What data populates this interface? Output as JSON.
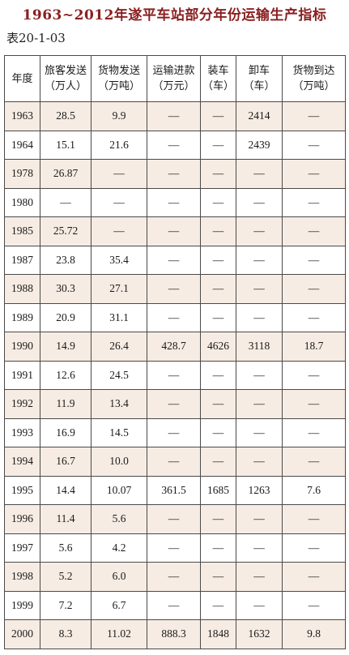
{
  "title": "1963~2012年遂平车站部分年份运输生产指标",
  "table_id": "表20-1-03",
  "headers": [
    {
      "line1": "年度",
      "line2": ""
    },
    {
      "line1": "旅客发送",
      "line2": "（万人）"
    },
    {
      "line1": "货物发送",
      "line2": "（万吨）"
    },
    {
      "line1": "运输进款",
      "line2": "（万元）"
    },
    {
      "line1": "装车",
      "line2": "（车）"
    },
    {
      "line1": "卸车",
      "line2": "（车）"
    },
    {
      "line1": "货物到达",
      "line2": "（万吨）"
    }
  ],
  "rows": [
    [
      "1963",
      "28.5",
      "9.9",
      "—",
      "—",
      "2414",
      "—"
    ],
    [
      "1964",
      "15.1",
      "21.6",
      "—",
      "—",
      "2439",
      "—"
    ],
    [
      "1978",
      "26.87",
      "—",
      "—",
      "—",
      "—",
      "—"
    ],
    [
      "1980",
      "—",
      "—",
      "—",
      "—",
      "—",
      "—"
    ],
    [
      "1985",
      "25.72",
      "—",
      "—",
      "—",
      "—",
      "—"
    ],
    [
      "1987",
      "23.8",
      "35.4",
      "—",
      "—",
      "—",
      "—"
    ],
    [
      "1988",
      "30.3",
      "27.1",
      "—",
      "—",
      "—",
      "—"
    ],
    [
      "1989",
      "20.9",
      "31.1",
      "—",
      "—",
      "—",
      "—"
    ],
    [
      "1990",
      "14.9",
      "26.4",
      "428.7",
      "4626",
      "3118",
      "18.7"
    ],
    [
      "1991",
      "12.6",
      "24.5",
      "—",
      "—",
      "—",
      "—"
    ],
    [
      "1992",
      "11.9",
      "13.4",
      "—",
      "—",
      "—",
      "—"
    ],
    [
      "1993",
      "16.9",
      "14.5",
      "—",
      "—",
      "—",
      "—"
    ],
    [
      "1994",
      "16.7",
      "10.0",
      "—",
      "—",
      "—",
      "—"
    ],
    [
      "1995",
      "14.4",
      "10.07",
      "361.5",
      "1685",
      "1263",
      "7.6"
    ],
    [
      "1996",
      "11.4",
      "5.6",
      "—",
      "—",
      "—",
      "—"
    ],
    [
      "1997",
      "5.6",
      "4.2",
      "—",
      "—",
      "—",
      "—"
    ],
    [
      "1998",
      "5.2",
      "6.0",
      "—",
      "—",
      "—",
      "—"
    ],
    [
      "1999",
      "7.2",
      "6.7",
      "—",
      "—",
      "—",
      "—"
    ],
    [
      "2000",
      "8.3",
      "11.02",
      "888.3",
      "1848",
      "1632",
      "9.8"
    ]
  ],
  "colors": {
    "title": "#8a1f1f",
    "row_shade": "#f6ece3",
    "border": "#4a4a4a"
  }
}
